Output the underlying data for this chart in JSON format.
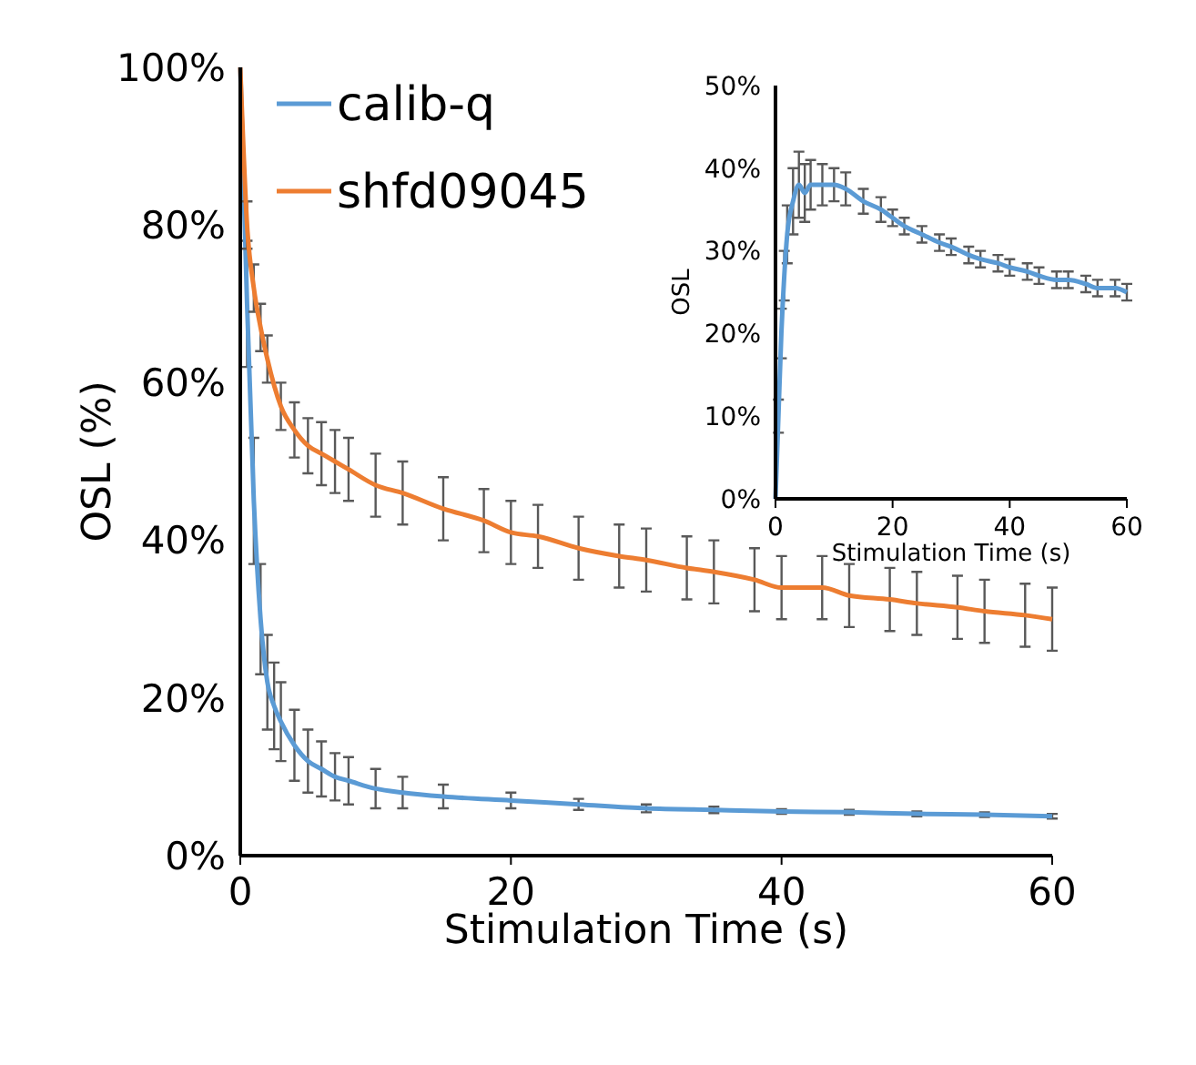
{
  "chart_data": [
    {
      "type": "line",
      "xlabel": "Stimulation Time (s)",
      "ylabel": "OSL (%)",
      "xlim": [
        0,
        60
      ],
      "ylim": [
        0,
        100
      ],
      "xticks": [
        0,
        20,
        40,
        60
      ],
      "yticks": [
        {
          "value": 0,
          "label": "0%"
        },
        {
          "value": 20,
          "label": "20%"
        },
        {
          "value": 40,
          "label": "40%"
        },
        {
          "value": 60,
          "label": "60%"
        },
        {
          "value": 80,
          "label": "80%"
        },
        {
          "value": 100,
          "label": "100%"
        }
      ],
      "legend": "top left",
      "grid": false,
      "marker": "none",
      "line_style": "solid",
      "series": [
        {
          "name": "calib-q",
          "color": "#5b9bd5",
          "x": [
            0,
            0.5,
            1,
            1.5,
            2,
            2.5,
            3,
            4,
            5,
            6,
            7,
            8,
            10,
            12,
            15,
            20,
            25,
            30,
            35,
            40,
            45,
            50,
            55,
            60
          ],
          "values": [
            100,
            70,
            45,
            30,
            22,
            19,
            17,
            14,
            12,
            11,
            10,
            9.5,
            8.5,
            8,
            7.5,
            7,
            6.5,
            6,
            5.8,
            5.6,
            5.5,
            5.3,
            5.2,
            5
          ],
          "errors": [
            null,
            8,
            8,
            7,
            6,
            5.5,
            5,
            4.5,
            4,
            3.5,
            3,
            3,
            2.5,
            2,
            1.5,
            1,
            0.7,
            0.5,
            0.4,
            0.3,
            0.3,
            0.3,
            0.3,
            0.3
          ]
        },
        {
          "name": "shfd09045",
          "color": "#ed7d31",
          "x": [
            0,
            0.5,
            1,
            1.5,
            2,
            3,
            4,
            5,
            6,
            7,
            8,
            10,
            12,
            15,
            18,
            20,
            22,
            25,
            28,
            30,
            33,
            35,
            38,
            40,
            43,
            45,
            48,
            50,
            53,
            55,
            58,
            60
          ],
          "values": [
            100,
            80,
            72,
            67,
            63,
            57,
            54,
            52,
            51,
            50,
            49,
            47,
            46,
            44,
            42.5,
            41,
            40.5,
            39,
            38,
            37.5,
            36.5,
            36,
            35,
            34,
            34,
            33,
            32.5,
            32,
            31.5,
            31,
            30.5,
            30
          ],
          "errors": [
            null,
            3,
            3,
            3,
            3,
            3,
            3.5,
            3.5,
            4,
            4,
            4,
            4,
            4,
            4,
            4,
            4,
            4,
            4,
            4,
            4,
            4,
            4,
            4,
            4,
            4,
            4,
            4,
            4,
            4,
            4,
            4,
            4
          ]
        }
      ]
    },
    {
      "type": "line",
      "xlabel": "Stimulation Time (s)",
      "ylabel": "OSL",
      "xlim": [
        0,
        60
      ],
      "ylim": [
        0,
        50
      ],
      "xticks": [
        0,
        20,
        40,
        60
      ],
      "yticks": [
        {
          "value": 0,
          "label": "0%"
        },
        {
          "value": 10,
          "label": "10%"
        },
        {
          "value": 20,
          "label": "20%"
        },
        {
          "value": 30,
          "label": "30%"
        },
        {
          "value": 40,
          "label": "40%"
        },
        {
          "value": 50,
          "label": "50%"
        }
      ],
      "grid": false,
      "line_style": "solid",
      "series": [
        {
          "color": "#5b9bd5",
          "x": [
            0,
            0.5,
            1,
            1.5,
            2,
            3,
            4,
            5,
            6,
            8,
            10,
            12,
            15,
            18,
            20,
            22,
            25,
            28,
            30,
            33,
            35,
            38,
            40,
            43,
            45,
            48,
            50,
            53,
            55,
            58,
            60
          ],
          "values": [
            0,
            10,
            20,
            27,
            32,
            36,
            38,
            37,
            38,
            38,
            38,
            37.5,
            36,
            35,
            34,
            33,
            32,
            31,
            30.5,
            29.5,
            29,
            28.5,
            28,
            27.5,
            27,
            26.5,
            26.5,
            26,
            25.5,
            25.5,
            25
          ],
          "errors": [
            null,
            2,
            3,
            3,
            3.5,
            4,
            4,
            3.5,
            3,
            2.5,
            2,
            2,
            1.5,
            1.5,
            1,
            1,
            1,
            1,
            1,
            1,
            1,
            1,
            1,
            1,
            1,
            1,
            1,
            1,
            1,
            1,
            1
          ]
        }
      ]
    }
  ]
}
